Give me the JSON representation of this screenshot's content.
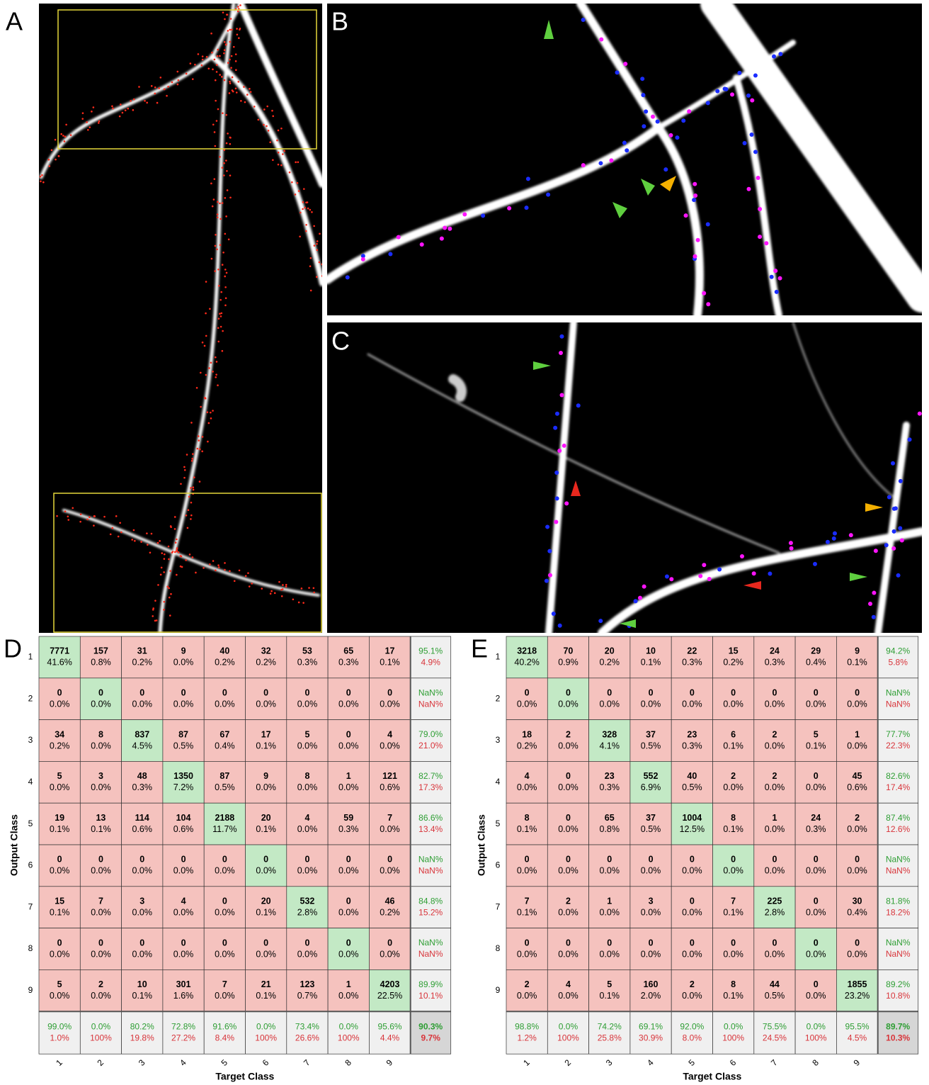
{
  "panels": {
    "a": "A",
    "b": "B",
    "c": "C"
  },
  "matrices": [
    {
      "label": "D",
      "y_label": "Output Class",
      "x_label": "Target Class",
      "row_labels": [
        "1",
        "2",
        "3",
        "4",
        "5",
        "6",
        "7",
        "8",
        "9"
      ],
      "col_labels": [
        "1",
        "2",
        "3",
        "4",
        "5",
        "6",
        "7",
        "8",
        "9"
      ],
      "cells": [
        [
          [
            7771,
            "41.6%"
          ],
          [
            157,
            "0.8%"
          ],
          [
            31,
            "0.2%"
          ],
          [
            9,
            "0.0%"
          ],
          [
            40,
            "0.2%"
          ],
          [
            32,
            "0.2%"
          ],
          [
            53,
            "0.3%"
          ],
          [
            65,
            "0.3%"
          ],
          [
            17,
            "0.1%"
          ]
        ],
        [
          [
            0,
            "0.0%"
          ],
          [
            0,
            "0.0%"
          ],
          [
            0,
            "0.0%"
          ],
          [
            0,
            "0.0%"
          ],
          [
            0,
            "0.0%"
          ],
          [
            0,
            "0.0%"
          ],
          [
            0,
            "0.0%"
          ],
          [
            0,
            "0.0%"
          ],
          [
            0,
            "0.0%"
          ]
        ],
        [
          [
            34,
            "0.2%"
          ],
          [
            8,
            "0.0%"
          ],
          [
            837,
            "4.5%"
          ],
          [
            87,
            "0.5%"
          ],
          [
            67,
            "0.4%"
          ],
          [
            17,
            "0.1%"
          ],
          [
            5,
            "0.0%"
          ],
          [
            0,
            "0.0%"
          ],
          [
            4,
            "0.0%"
          ]
        ],
        [
          [
            5,
            "0.0%"
          ],
          [
            3,
            "0.0%"
          ],
          [
            48,
            "0.3%"
          ],
          [
            1350,
            "7.2%"
          ],
          [
            87,
            "0.5%"
          ],
          [
            9,
            "0.0%"
          ],
          [
            8,
            "0.0%"
          ],
          [
            1,
            "0.0%"
          ],
          [
            121,
            "0.6%"
          ]
        ],
        [
          [
            19,
            "0.1%"
          ],
          [
            13,
            "0.1%"
          ],
          [
            114,
            "0.6%"
          ],
          [
            104,
            "0.6%"
          ],
          [
            2188,
            "11.7%"
          ],
          [
            20,
            "0.1%"
          ],
          [
            4,
            "0.0%"
          ],
          [
            59,
            "0.3%"
          ],
          [
            7,
            "0.0%"
          ]
        ],
        [
          [
            0,
            "0.0%"
          ],
          [
            0,
            "0.0%"
          ],
          [
            0,
            "0.0%"
          ],
          [
            0,
            "0.0%"
          ],
          [
            0,
            "0.0%"
          ],
          [
            0,
            "0.0%"
          ],
          [
            0,
            "0.0%"
          ],
          [
            0,
            "0.0%"
          ],
          [
            0,
            "0.0%"
          ]
        ],
        [
          [
            15,
            "0.1%"
          ],
          [
            7,
            "0.0%"
          ],
          [
            3,
            "0.0%"
          ],
          [
            4,
            "0.0%"
          ],
          [
            0,
            "0.0%"
          ],
          [
            20,
            "0.1%"
          ],
          [
            532,
            "2.8%"
          ],
          [
            0,
            "0.0%"
          ],
          [
            46,
            "0.2%"
          ]
        ],
        [
          [
            0,
            "0.0%"
          ],
          [
            0,
            "0.0%"
          ],
          [
            0,
            "0.0%"
          ],
          [
            0,
            "0.0%"
          ],
          [
            0,
            "0.0%"
          ],
          [
            0,
            "0.0%"
          ],
          [
            0,
            "0.0%"
          ],
          [
            0,
            "0.0%"
          ],
          [
            0,
            "0.0%"
          ]
        ],
        [
          [
            5,
            "0.0%"
          ],
          [
            2,
            "0.0%"
          ],
          [
            10,
            "0.1%"
          ],
          [
            301,
            "1.6%"
          ],
          [
            7,
            "0.0%"
          ],
          [
            21,
            "0.1%"
          ],
          [
            123,
            "0.7%"
          ],
          [
            1,
            "0.0%"
          ],
          [
            4203,
            "22.5%"
          ]
        ]
      ],
      "row_summary": [
        [
          "95.1%",
          "4.9%"
        ],
        [
          "NaN%",
          "NaN%"
        ],
        [
          "79.0%",
          "21.0%"
        ],
        [
          "82.7%",
          "17.3%"
        ],
        [
          "86.6%",
          "13.4%"
        ],
        [
          "NaN%",
          "NaN%"
        ],
        [
          "84.8%",
          "15.2%"
        ],
        [
          "NaN%",
          "NaN%"
        ],
        [
          "89.9%",
          "10.1%"
        ]
      ],
      "col_summary": [
        [
          "99.0%",
          "1.0%"
        ],
        [
          "0.0%",
          "100%"
        ],
        [
          "80.2%",
          "19.8%"
        ],
        [
          "72.8%",
          "27.2%"
        ],
        [
          "91.6%",
          "8.4%"
        ],
        [
          "0.0%",
          "100%"
        ],
        [
          "73.4%",
          "26.6%"
        ],
        [
          "0.0%",
          "100%"
        ],
        [
          "95.6%",
          "4.4%"
        ]
      ],
      "total": [
        "90.3%",
        "9.7%"
      ]
    },
    {
      "label": "E",
      "y_label": "Output Class",
      "x_label": "Target Class",
      "row_labels": [
        "1",
        "2",
        "3",
        "4",
        "5",
        "6",
        "7",
        "8",
        "9"
      ],
      "col_labels": [
        "1",
        "2",
        "3",
        "4",
        "5",
        "6",
        "7",
        "8",
        "9"
      ],
      "cells": [
        [
          [
            3218,
            "40.2%"
          ],
          [
            70,
            "0.9%"
          ],
          [
            20,
            "0.2%"
          ],
          [
            10,
            "0.1%"
          ],
          [
            22,
            "0.3%"
          ],
          [
            15,
            "0.2%"
          ],
          [
            24,
            "0.3%"
          ],
          [
            29,
            "0.4%"
          ],
          [
            9,
            "0.1%"
          ]
        ],
        [
          [
            0,
            "0.0%"
          ],
          [
            0,
            "0.0%"
          ],
          [
            0,
            "0.0%"
          ],
          [
            0,
            "0.0%"
          ],
          [
            0,
            "0.0%"
          ],
          [
            0,
            "0.0%"
          ],
          [
            0,
            "0.0%"
          ],
          [
            0,
            "0.0%"
          ],
          [
            0,
            "0.0%"
          ]
        ],
        [
          [
            18,
            "0.2%"
          ],
          [
            2,
            "0.0%"
          ],
          [
            328,
            "4.1%"
          ],
          [
            37,
            "0.5%"
          ],
          [
            23,
            "0.3%"
          ],
          [
            6,
            "0.1%"
          ],
          [
            2,
            "0.0%"
          ],
          [
            5,
            "0.1%"
          ],
          [
            1,
            "0.0%"
          ]
        ],
        [
          [
            4,
            "0.0%"
          ],
          [
            0,
            "0.0%"
          ],
          [
            23,
            "0.3%"
          ],
          [
            552,
            "6.9%"
          ],
          [
            40,
            "0.5%"
          ],
          [
            2,
            "0.0%"
          ],
          [
            2,
            "0.0%"
          ],
          [
            0,
            "0.0%"
          ],
          [
            45,
            "0.6%"
          ]
        ],
        [
          [
            8,
            "0.1%"
          ],
          [
            0,
            "0.0%"
          ],
          [
            65,
            "0.8%"
          ],
          [
            37,
            "0.5%"
          ],
          [
            1004,
            "12.5%"
          ],
          [
            8,
            "0.1%"
          ],
          [
            1,
            "0.0%"
          ],
          [
            24,
            "0.3%"
          ],
          [
            2,
            "0.0%"
          ]
        ],
        [
          [
            0,
            "0.0%"
          ],
          [
            0,
            "0.0%"
          ],
          [
            0,
            "0.0%"
          ],
          [
            0,
            "0.0%"
          ],
          [
            0,
            "0.0%"
          ],
          [
            0,
            "0.0%"
          ],
          [
            0,
            "0.0%"
          ],
          [
            0,
            "0.0%"
          ],
          [
            0,
            "0.0%"
          ]
        ],
        [
          [
            7,
            "0.1%"
          ],
          [
            2,
            "0.0%"
          ],
          [
            1,
            "0.0%"
          ],
          [
            3,
            "0.0%"
          ],
          [
            0,
            "0.0%"
          ],
          [
            7,
            "0.1%"
          ],
          [
            225,
            "2.8%"
          ],
          [
            0,
            "0.0%"
          ],
          [
            30,
            "0.4%"
          ]
        ],
        [
          [
            0,
            "0.0%"
          ],
          [
            0,
            "0.0%"
          ],
          [
            0,
            "0.0%"
          ],
          [
            0,
            "0.0%"
          ],
          [
            0,
            "0.0%"
          ],
          [
            0,
            "0.0%"
          ],
          [
            0,
            "0.0%"
          ],
          [
            0,
            "0.0%"
          ],
          [
            0,
            "0.0%"
          ]
        ],
        [
          [
            2,
            "0.0%"
          ],
          [
            4,
            "0.0%"
          ],
          [
            5,
            "0.1%"
          ],
          [
            160,
            "2.0%"
          ],
          [
            2,
            "0.0%"
          ],
          [
            8,
            "0.1%"
          ],
          [
            44,
            "0.5%"
          ],
          [
            0,
            "0.0%"
          ],
          [
            1855,
            "23.2%"
          ]
        ]
      ],
      "row_summary": [
        [
          "94.2%",
          "5.8%"
        ],
        [
          "NaN%",
          "NaN%"
        ],
        [
          "77.7%",
          "22.3%"
        ],
        [
          "82.6%",
          "17.4%"
        ],
        [
          "87.4%",
          "12.6%"
        ],
        [
          "NaN%",
          "NaN%"
        ],
        [
          "81.8%",
          "18.2%"
        ],
        [
          "NaN%",
          "NaN%"
        ],
        [
          "89.2%",
          "10.8%"
        ]
      ],
      "col_summary": [
        [
          "98.8%",
          "1.2%"
        ],
        [
          "0.0%",
          "100%"
        ],
        [
          "74.2%",
          "25.8%"
        ],
        [
          "69.1%",
          "30.9%"
        ],
        [
          "92.0%",
          "8.0%"
        ],
        [
          "0.0%",
          "100%"
        ],
        [
          "75.5%",
          "24.5%"
        ],
        [
          "0.0%",
          "100%"
        ],
        [
          "95.5%",
          "4.5%"
        ]
      ],
      "total": [
        "89.7%",
        "10.3%"
      ]
    }
  ]
}
